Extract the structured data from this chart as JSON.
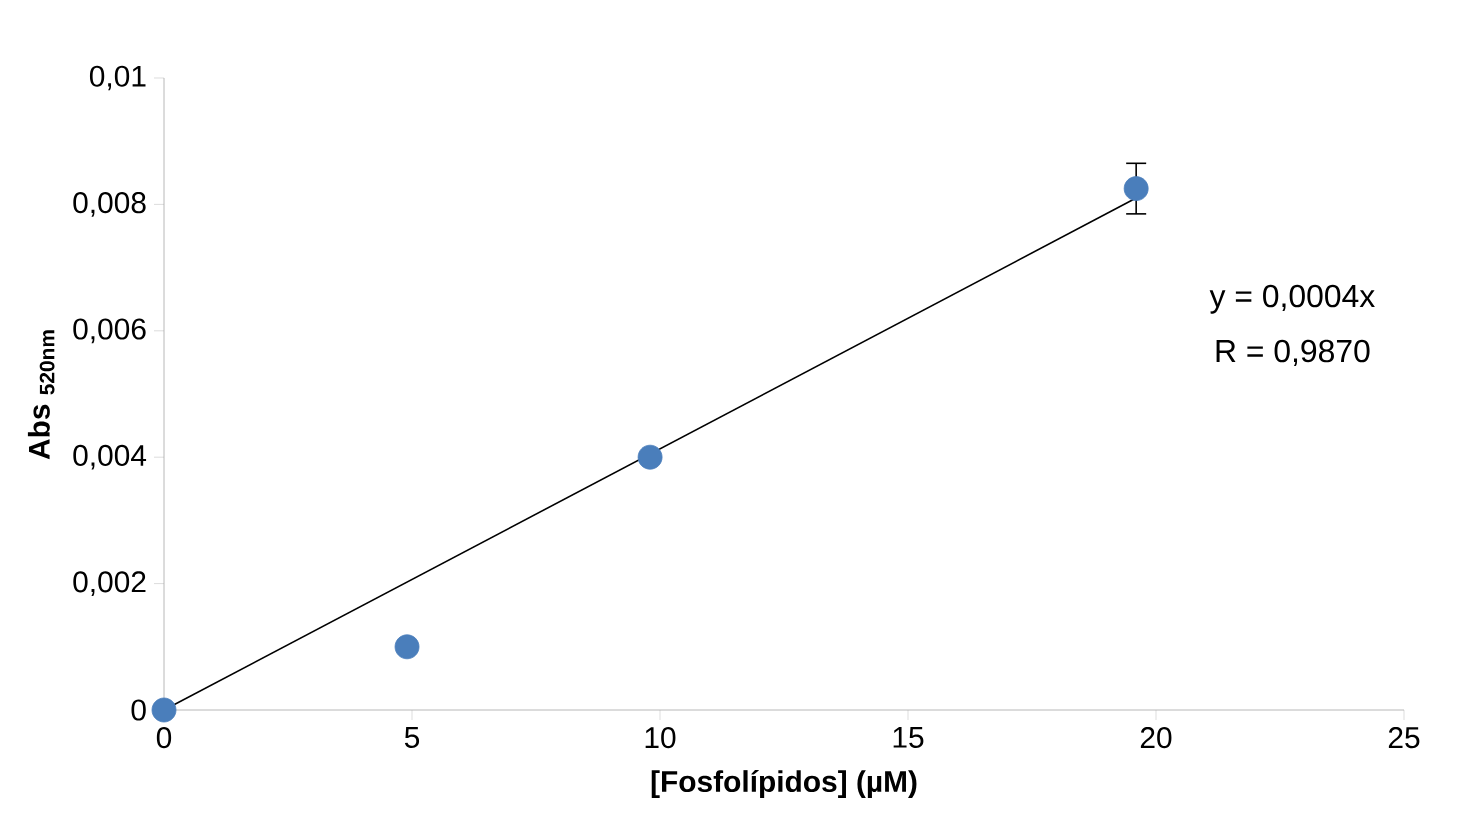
{
  "chart_data": {
    "type": "scatter",
    "xlabel": "[Fosfolípidos] (µM)",
    "ylabel": "**Abs $_{520nm}$**",
    "x": [
      0,
      4.9,
      9.8,
      19.6
    ],
    "series": [
      {
        "color": "#4a7ebb",
        "marker": "circle",
        "values": [
          0,
          0.001,
          0.004,
          0.00825
        ],
        "errors": [
          null,
          null,
          null,
          0.0004
        ]
      },
      {
        "type": "line",
        "color": "#000000",
        "marker": "none",
        "line_style": "solid",
        "x": [
          0,
          19.6
        ],
        "values": [
          0,
          0.0081
        ]
      }
    ],
    "xlim": [
      0,
      25
    ],
    "xticks": [
      0,
      5,
      10,
      15,
      20,
      25
    ],
    "ylim": [
      0,
      0.01
    ],
    "yticks": [
      {
        "value": 0,
        "label": "0"
      },
      {
        "value": 0.002,
        "label": "0,002"
      },
      {
        "value": 0.004,
        "label": "0,004"
      },
      {
        "value": 0.006,
        "label": "0,006"
      },
      {
        "value": 0.008,
        "label": "0,008"
      },
      {
        "value": 0.01,
        "label": "0,01"
      }
    ],
    "annotations": [
      "y = 0,0004x",
      "R = 0,9870"
    ],
    "grid": false
  }
}
